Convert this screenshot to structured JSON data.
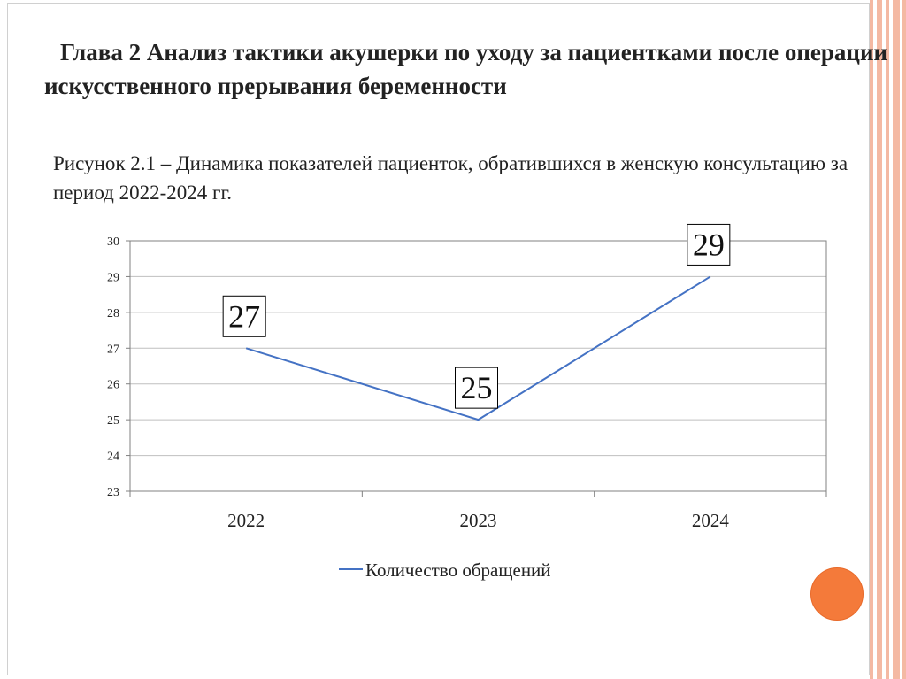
{
  "slide": {
    "title": "Глава 2 Анализ тактики акушерки по уходу за пациентками после операции искусственного прерывания беременности",
    "caption": "Рисунок 2.1 – Динамика показателей пациенток, обратившихся в женскую консультацию за период 2022-2024 гг.",
    "accent_color": "#f47a3a",
    "stripe_color": "#f4b9a3"
  },
  "chart_data": {
    "type": "line",
    "categories": [
      "2022",
      "2023",
      "2024"
    ],
    "series": [
      {
        "name": "Количество обращений",
        "values": [
          27,
          25,
          29
        ],
        "color": "#4472c4"
      }
    ],
    "data_labels": [
      "27",
      "25",
      "29"
    ],
    "ylim": [
      23,
      30
    ],
    "yticks": [
      "23",
      "24",
      "25",
      "26",
      "27",
      "28",
      "29",
      "30"
    ],
    "grid": true,
    "legend": "bottom"
  }
}
